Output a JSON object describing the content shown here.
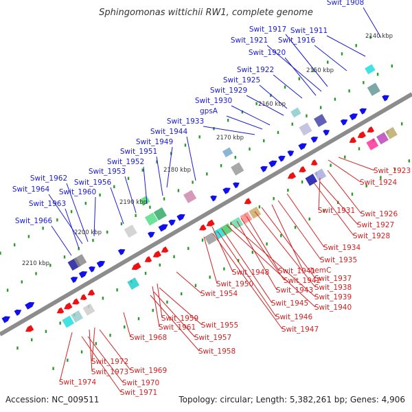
{
  "title": "Sphingomonas wittichii RW1, complete genome",
  "footer": {
    "accession": "Accession: NC_009511",
    "summary": "Topology: circular; Length: 5,382,261 bp; Genes: 4,906"
  },
  "colors": {
    "forward_label": "#1a1ad6",
    "reverse_label": "#d42020",
    "forward_gene": "#1010ee",
    "reverse_gene": "#ee1111",
    "backbone": "#8c8c8c",
    "tick_dot": "#2a9a2a"
  },
  "ticks": [
    "2140 kbp",
    "2150 kbp",
    "2160 kbp",
    "2170 kbp",
    "2180 kbp",
    "2190 kbp",
    "2200 kbp",
    "2210 kbp"
  ],
  "forward_labels": [
    "Swit_1908",
    "Swit_1911",
    "Swit_1916",
    "Swit_1917",
    "Swit_1921",
    "Swit_1920",
    "Swit_1922",
    "Swit_1925",
    "Swit_1929",
    "Swit_1930",
    "gpsA",
    "Swit_1933",
    "Swit_1944",
    "Swit_1949",
    "Swit_1951",
    "Swit_1952",
    "Swit_1953",
    "Swit_1956",
    "Swit_1962",
    "Swit_1960",
    "Swit_1964",
    "Swit_1963",
    "Swit_1966"
  ],
  "reverse_labels": [
    "Swit_1923",
    "Swit_1924",
    "Swit_1926",
    "Swit_1931",
    "Swit_1927",
    "Swit_1928",
    "Swit_1934",
    "Swit_1935",
    "hemC",
    "Swit_1937",
    "Swit_1938",
    "Swit_1941",
    "Swit_1942",
    "Swit_1943",
    "Swit_1939",
    "Swit_1940",
    "Swit_1948",
    "Swit_1950",
    "Swit_1945",
    "Swit_1954",
    "Swit_1946",
    "Swit_1947",
    "Swit_1959",
    "Swit_1955",
    "Swit_1961",
    "Swit_1957",
    "Swit_1958",
    "Swit_1968",
    "Swit_1972",
    "Swit_1969",
    "Swit_1973",
    "Swit_1974",
    "Swit_1970",
    "Swit_1971"
  ]
}
